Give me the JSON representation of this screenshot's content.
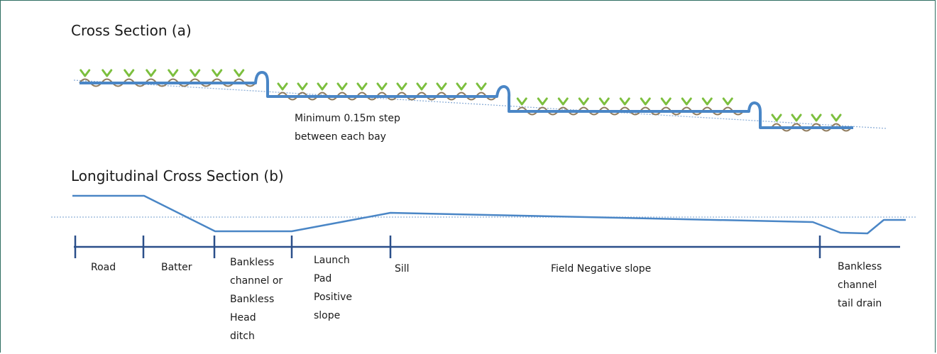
{
  "diagram": {
    "title_a": "Cross Section (a)",
    "title_b": "Longitudinal Cross Section (b)",
    "step_note": [
      "Minimum 0.15m step",
      "between each bay"
    ],
    "segments": [
      {
        "id": "road",
        "lines": [
          "Road"
        ]
      },
      {
        "id": "batter",
        "lines": [
          "Batter"
        ]
      },
      {
        "id": "bankless-channel",
        "lines": [
          "Bankless",
          "channel or",
          "Bankless",
          "Head",
          "ditch"
        ]
      },
      {
        "id": "launch-pad",
        "lines": [
          "Launch",
          "Pad",
          "Positive",
          "slope"
        ]
      },
      {
        "id": "sill",
        "lines": [
          "Sill"
        ]
      },
      {
        "id": "field",
        "lines": [
          "Field Negative slope"
        ]
      },
      {
        "id": "tail-drain",
        "lines": [
          "Bankless",
          "channel",
          "tail drain"
        ]
      }
    ],
    "colors": {
      "profile": "#4a86c6",
      "reference": "#8fb0d8",
      "furrow": "#8f7b5e",
      "plant": "#7cbf3e",
      "frame": "#2f6e62"
    }
  }
}
